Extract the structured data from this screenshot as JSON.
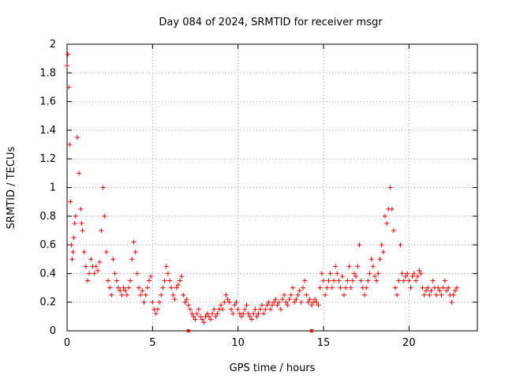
{
  "chart_data": {
    "type": "scatter",
    "title": "Day 084 of 2024, SRMTID for receiver msgr",
    "xlabel": "GPS time / hours",
    "ylabel": "SRMTID / TECUs",
    "xlim": [
      0,
      24
    ],
    "ylim": [
      0,
      2
    ],
    "xticks": [
      0,
      5,
      10,
      15,
      20
    ],
    "yticks": [
      0,
      0.2,
      0.4,
      0.6,
      0.8,
      1,
      1.2,
      1.4,
      1.6,
      1.8,
      2
    ],
    "xtick_labels": [
      "0",
      "5",
      "10",
      "15",
      "20"
    ],
    "ytick_labels": [
      "0",
      "0.2",
      "0.4",
      "0.6",
      "0.8",
      "1",
      "1.2",
      "1.4",
      "1.6",
      "1.8",
      "2"
    ],
    "grid": true,
    "marker": "+",
    "series_color": "#ff0000",
    "series": [
      {
        "name": "SRMTID",
        "x": [
          0.0,
          0.05,
          0.1,
          0.15,
          0.2,
          0.25,
          0.3,
          0.35,
          0.4,
          0.45,
          0.5,
          0.6,
          0.7,
          0.8,
          0.85,
          0.9,
          1.0,
          1.1,
          1.2,
          1.3,
          1.4,
          1.5,
          1.6,
          1.7,
          1.8,
          1.9,
          2.0,
          2.1,
          2.2,
          2.3,
          2.4,
          2.5,
          2.6,
          2.7,
          2.8,
          2.9,
          3.0,
          3.1,
          3.2,
          3.3,
          3.4,
          3.5,
          3.6,
          3.7,
          3.8,
          3.9,
          4.0,
          4.1,
          4.2,
          4.3,
          4.4,
          4.5,
          4.6,
          4.7,
          4.8,
          4.9,
          5.0,
          5.1,
          5.2,
          5.3,
          5.4,
          5.5,
          5.6,
          5.7,
          5.8,
          5.9,
          6.0,
          6.1,
          6.2,
          6.3,
          6.4,
          6.5,
          6.6,
          6.7,
          6.8,
          6.9,
          7.0,
          7.1,
          7.2,
          7.3,
          7.4,
          7.5,
          7.6,
          7.7,
          7.8,
          7.9,
          8.0,
          8.1,
          8.2,
          8.3,
          8.4,
          8.5,
          8.6,
          8.7,
          8.8,
          8.9,
          9.0,
          9.1,
          9.2,
          9.3,
          9.4,
          9.5,
          9.6,
          9.7,
          9.8,
          9.9,
          10.0,
          10.1,
          10.2,
          10.3,
          10.4,
          10.5,
          10.6,
          10.7,
          10.8,
          10.9,
          11.0,
          11.1,
          11.2,
          11.3,
          11.4,
          11.5,
          11.6,
          11.7,
          11.8,
          11.9,
          12.0,
          12.1,
          12.2,
          12.3,
          12.4,
          12.5,
          12.6,
          12.7,
          12.8,
          12.9,
          13.0,
          13.1,
          13.2,
          13.3,
          13.4,
          13.5,
          13.6,
          13.7,
          13.8,
          13.9,
          14.0,
          14.1,
          14.2,
          14.3,
          14.4,
          14.5,
          14.6,
          14.7,
          14.8,
          14.9,
          15.0,
          15.1,
          15.2,
          15.3,
          15.4,
          15.5,
          15.6,
          15.7,
          15.8,
          15.9,
          16.0,
          16.1,
          16.2,
          16.3,
          16.4,
          16.5,
          16.6,
          16.7,
          16.8,
          16.9,
          17.0,
          17.1,
          17.2,
          17.3,
          17.4,
          17.5,
          17.6,
          17.7,
          17.8,
          17.9,
          18.0,
          18.1,
          18.2,
          18.3,
          18.4,
          18.5,
          18.6,
          18.7,
          18.8,
          18.9,
          19.0,
          19.1,
          19.2,
          19.3,
          19.4,
          19.5,
          19.6,
          19.7,
          19.8,
          19.9,
          20.0,
          20.1,
          20.2,
          20.3,
          20.4,
          20.5,
          20.6,
          20.7,
          20.8,
          20.9,
          21.0,
          21.1,
          21.2,
          21.3,
          21.4,
          21.5,
          21.6,
          21.7,
          21.8,
          21.9,
          22.0,
          22.1,
          22.2,
          22.3,
          22.4,
          22.5,
          22.6,
          22.7,
          22.8
        ],
        "y": [
          1.85,
          1.93,
          1.7,
          1.3,
          0.9,
          0.6,
          0.5,
          0.55,
          0.65,
          0.75,
          0.8,
          1.35,
          1.1,
          0.85,
          0.75,
          0.7,
          0.55,
          0.45,
          0.35,
          0.4,
          0.5,
          0.45,
          0.4,
          0.45,
          0.42,
          0.48,
          0.7,
          1.0,
          0.8,
          0.55,
          0.35,
          0.3,
          0.25,
          0.5,
          0.4,
          0.35,
          0.3,
          0.28,
          0.25,
          0.3,
          0.28,
          0.25,
          0.3,
          0.35,
          0.5,
          0.62,
          0.55,
          0.4,
          0.3,
          0.25,
          0.28,
          0.2,
          0.25,
          0.3,
          0.35,
          0.38,
          0.2,
          0.15,
          0.12,
          0.15,
          0.2,
          0.25,
          0.3,
          0.35,
          0.45,
          0.4,
          0.35,
          0.3,
          0.25,
          0.22,
          0.3,
          0.32,
          0.35,
          0.38,
          0.25,
          0.2,
          0.22,
          0.18,
          0.15,
          0.12,
          0.1,
          0.08,
          0.12,
          0.15,
          0.1,
          0.08,
          0.06,
          0.1,
          0.12,
          0.1,
          0.08,
          0.12,
          0.15,
          0.1,
          0.12,
          0.15,
          0.18,
          0.15,
          0.2,
          0.25,
          0.22,
          0.2,
          0.15,
          0.12,
          0.18,
          0.2,
          0.15,
          0.12,
          0.1,
          0.12,
          0.15,
          0.18,
          0.12,
          0.1,
          0.08,
          0.12,
          0.15,
          0.1,
          0.12,
          0.15,
          0.18,
          0.12,
          0.15,
          0.18,
          0.2,
          0.15,
          0.18,
          0.2,
          0.22,
          0.18,
          0.2,
          0.15,
          0.22,
          0.25,
          0.2,
          0.18,
          0.22,
          0.25,
          0.3,
          0.2,
          0.22,
          0.25,
          0.28,
          0.2,
          0.3,
          0.35,
          0.25,
          0.2,
          0.22,
          0.18,
          0.2,
          0.22,
          0.2,
          0.18,
          0.3,
          0.4,
          0.35,
          0.25,
          0.3,
          0.35,
          0.4,
          0.3,
          0.35,
          0.45,
          0.4,
          0.35,
          0.3,
          0.38,
          0.25,
          0.3,
          0.35,
          0.45,
          0.3,
          0.35,
          0.4,
          0.38,
          0.45,
          0.6,
          0.35,
          0.3,
          0.25,
          0.3,
          0.35,
          0.4,
          0.5,
          0.45,
          0.38,
          0.35,
          0.4,
          0.5,
          0.6,
          0.55,
          0.8,
          0.75,
          0.85,
          1.0,
          0.85,
          0.7,
          0.3,
          0.25,
          0.35,
          0.6,
          0.4,
          0.35,
          0.38,
          0.4,
          0.35,
          0.3,
          0.38,
          0.4,
          0.35,
          0.38,
          0.42,
          0.4,
          0.3,
          0.25,
          0.28,
          0.3,
          0.25,
          0.28,
          0.35,
          0.3,
          0.25,
          0.3,
          0.28,
          0.25,
          0.3,
          0.35,
          0.28,
          0.3,
          0.25,
          0.2,
          0.25,
          0.28,
          0.3
        ]
      }
    ],
    "zero_markers_x": [
      7.1,
      14.3
    ]
  }
}
